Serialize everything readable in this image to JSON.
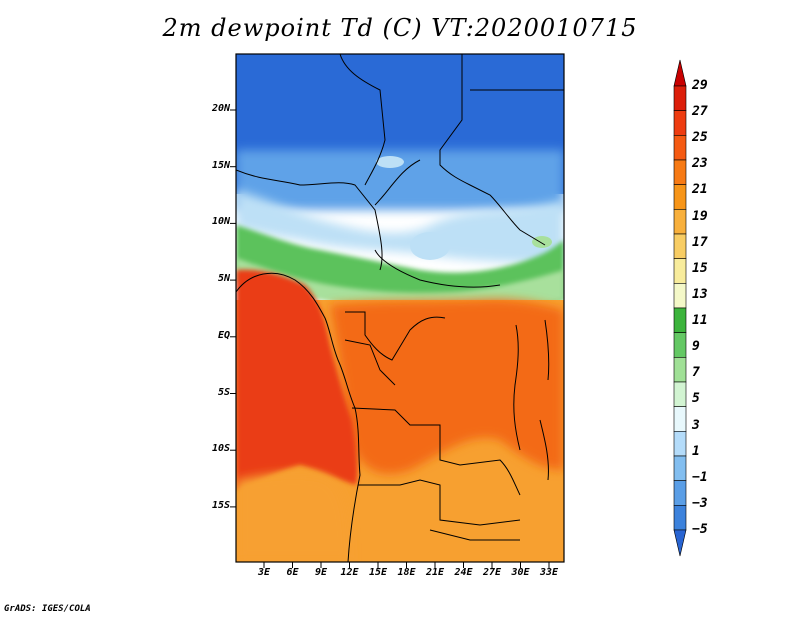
{
  "title": "2m dewpoint Td (C) VT:2020010715",
  "credit": "GrADS: IGES/COLA",
  "lat_labels": [
    "20N",
    "15N",
    "10N",
    "5N",
    "EQ",
    "5S",
    "10S",
    "15S"
  ],
  "lon_labels": [
    "3E",
    "6E",
    "9E",
    "12E",
    "15E",
    "18E",
    "21E",
    "24E",
    "27E",
    "30E",
    "33E"
  ],
  "colorbar": {
    "labels": [
      "29",
      "27",
      "25",
      "23",
      "21",
      "19",
      "17",
      "15",
      "13",
      "11",
      "9",
      "7",
      "5",
      "3",
      "1",
      "−1",
      "−3",
      "−5"
    ],
    "colors": [
      "#c80000",
      "#dc1e0a",
      "#ee3c10",
      "#f55a12",
      "#f77a14",
      "#f79518",
      "#f8b03c",
      "#f8cd64",
      "#f8ec9c",
      "#f4f8c8",
      "#3cb43c",
      "#64c864",
      "#a0e096",
      "#d2f4d2",
      "#e8f8fc",
      "#b4dcfa",
      "#82bef0",
      "#5a9ee6",
      "#3c82dc",
      "#2864d2"
    ]
  },
  "map_colors": {
    "sahara": "#2a6ad6",
    "sahel": "#5ea2e8",
    "sahel_light": "#bde0f6",
    "green_band": "#5cc25c",
    "green_light": "#a8e09c",
    "ocean_warm": "#ea3e14",
    "congo": "#f36a16",
    "south": "#f7a030"
  }
}
